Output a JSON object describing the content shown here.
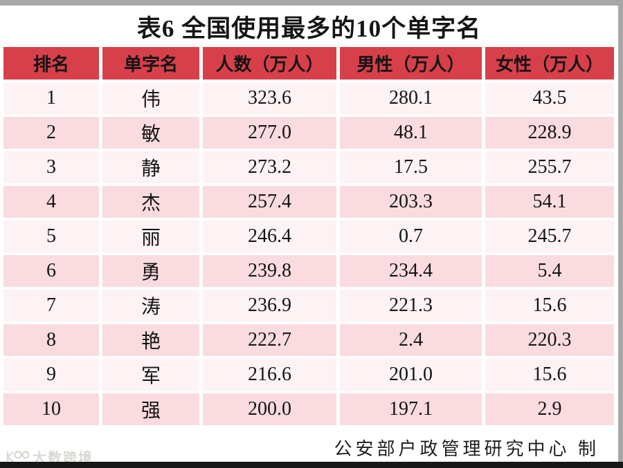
{
  "page": {
    "title": "表6 全国使用最多的10个单字名",
    "source_note": "公安部户政管理研究中心 制",
    "watermark_text": "大数跨境"
  },
  "table": {
    "headers": [
      "排名",
      "单字名",
      "人数（万人）",
      "男性（万人）",
      "女性（万人）"
    ],
    "rows": [
      [
        "1",
        "伟",
        "323.6",
        "280.1",
        "43.5"
      ],
      [
        "2",
        "敏",
        "277.0",
        "48.1",
        "228.9"
      ],
      [
        "3",
        "静",
        "273.2",
        "17.5",
        "255.7"
      ],
      [
        "4",
        "杰",
        "257.4",
        "203.3",
        "54.1"
      ],
      [
        "5",
        "丽",
        "246.4",
        "0.7",
        "245.7"
      ],
      [
        "6",
        "勇",
        "239.8",
        "234.4",
        "5.4"
      ],
      [
        "7",
        "涛",
        "236.9",
        "221.3",
        "15.6"
      ],
      [
        "8",
        "艳",
        "222.7",
        "2.4",
        "220.3"
      ],
      [
        "9",
        "军",
        "216.6",
        "201.0",
        "15.6"
      ],
      [
        "10",
        "强",
        "200.0",
        "197.1",
        "2.9"
      ]
    ]
  },
  "chart_data": {
    "type": "table",
    "title": "表6 全国使用最多的10个单字名",
    "columns": [
      "排名",
      "单字名",
      "人数（万人）",
      "男性（万人）",
      "女性（万人）"
    ],
    "names": [
      "伟",
      "敏",
      "静",
      "杰",
      "丽",
      "勇",
      "涛",
      "艳",
      "军",
      "强"
    ],
    "series": [
      {
        "name": "人数（万人）",
        "values": [
          323.6,
          277.0,
          273.2,
          257.4,
          246.4,
          239.8,
          236.9,
          222.7,
          216.6,
          200.0
        ]
      },
      {
        "name": "男性（万人）",
        "values": [
          280.1,
          48.1,
          17.5,
          203.3,
          0.7,
          234.4,
          221.3,
          2.4,
          201.0,
          197.1
        ]
      },
      {
        "name": "女性（万人）",
        "values": [
          43.5,
          228.9,
          255.7,
          54.1,
          245.7,
          5.4,
          15.6,
          220.3,
          15.6,
          2.9
        ]
      }
    ]
  },
  "colors": {
    "header_bg": "#d7404a",
    "row_light": "#fdf2f4",
    "row_dark": "#fadbe0",
    "frame_gray": "#a7a7a7",
    "frame_dark": "#171717"
  }
}
